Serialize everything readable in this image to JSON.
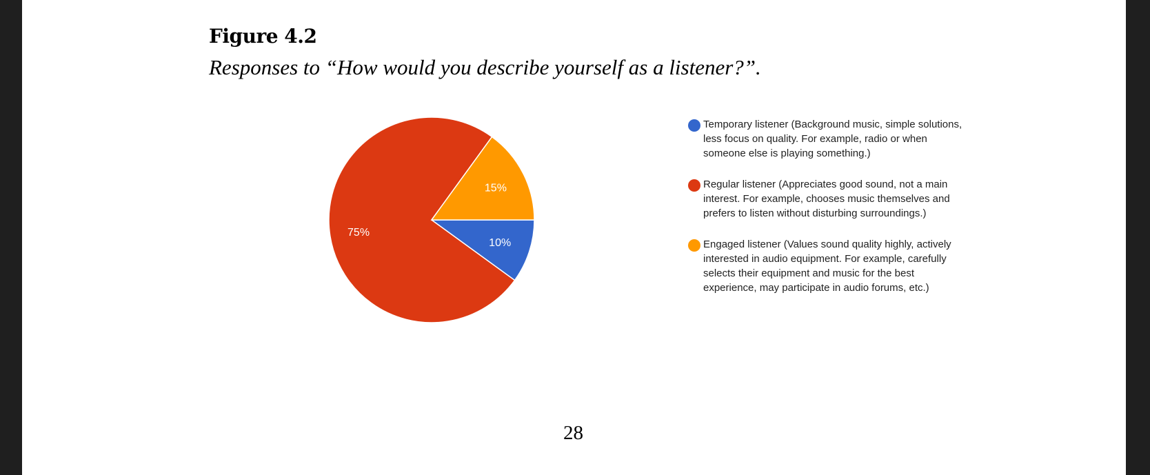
{
  "figure_label": "Figure 4.2",
  "caption": "Responses to “How would you describe yourself as a listener?”.",
  "page_number": "28",
  "chart_data": {
    "type": "pie",
    "start_angle": "3 o'clock, clockwise",
    "legend_position": "right",
    "slices": [
      {
        "label": "Temporary listener (Background music, simple solutions, less focus on quality. For example, radio or when someone else is playing something.)",
        "value": 10,
        "display": "10%",
        "color": "#3366cc"
      },
      {
        "label": "Regular listener (Appreciates good sound, not a main interest. For example, chooses music themselves and prefers to listen without disturbing surroundings.)",
        "value": 75,
        "display": "75%",
        "color": "#dc3912"
      },
      {
        "label": "Engaged listener (Values sound quality highly, actively interested in audio equipment. For example, carefully selects their equipment and music for the best experience, may participate in audio forums, etc.)",
        "value": 15,
        "display": "15%",
        "color": "#ff9900"
      }
    ]
  }
}
